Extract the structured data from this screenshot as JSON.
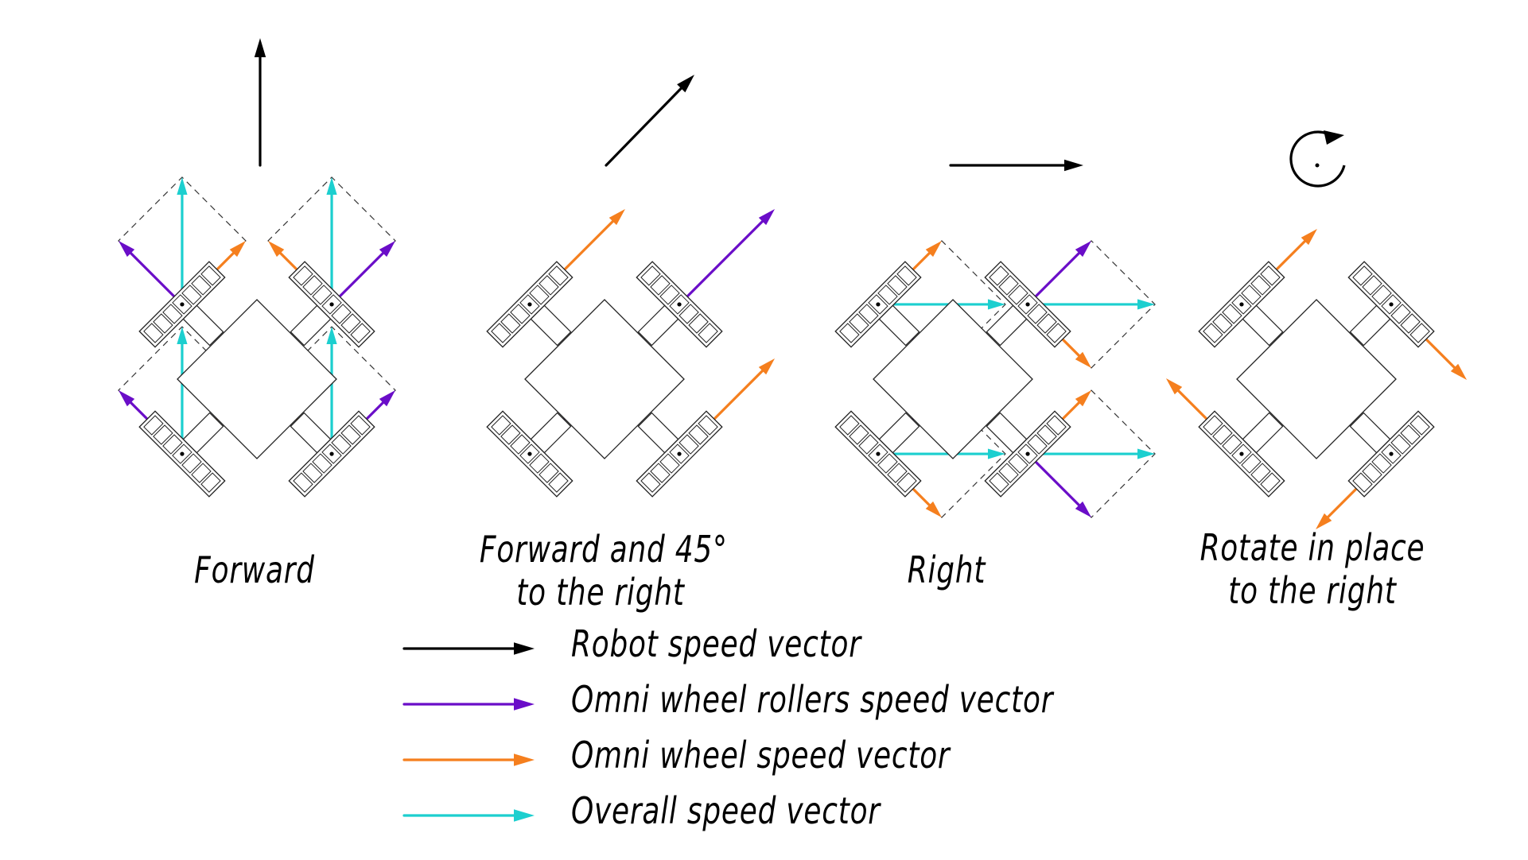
{
  "colors": {
    "robot": "#000000",
    "rollers": "#6a0dc8",
    "wheel": "#f57f1e",
    "overall": "#1ccfcf",
    "frame": "#222222"
  },
  "icons": [
    "rotation-arrow-icon"
  ],
  "panels": [
    {
      "id": "forward",
      "caption_lines": [
        "Forward"
      ]
    },
    {
      "id": "diagonal",
      "caption_lines": [
        "Forward and 45°",
        "to the right"
      ]
    },
    {
      "id": "right",
      "caption_lines": [
        "Right"
      ]
    },
    {
      "id": "rotate",
      "caption_lines": [
        "Rotate in place",
        "to the right"
      ]
    }
  ],
  "legend": [
    {
      "key": "robot",
      "label": "Robot speed vector"
    },
    {
      "key": "rollers",
      "label": "Omni wheel rollers speed vector"
    },
    {
      "key": "wheel",
      "label": "Omni wheel speed vector"
    },
    {
      "key": "overall",
      "label": "Overall speed vector"
    }
  ]
}
